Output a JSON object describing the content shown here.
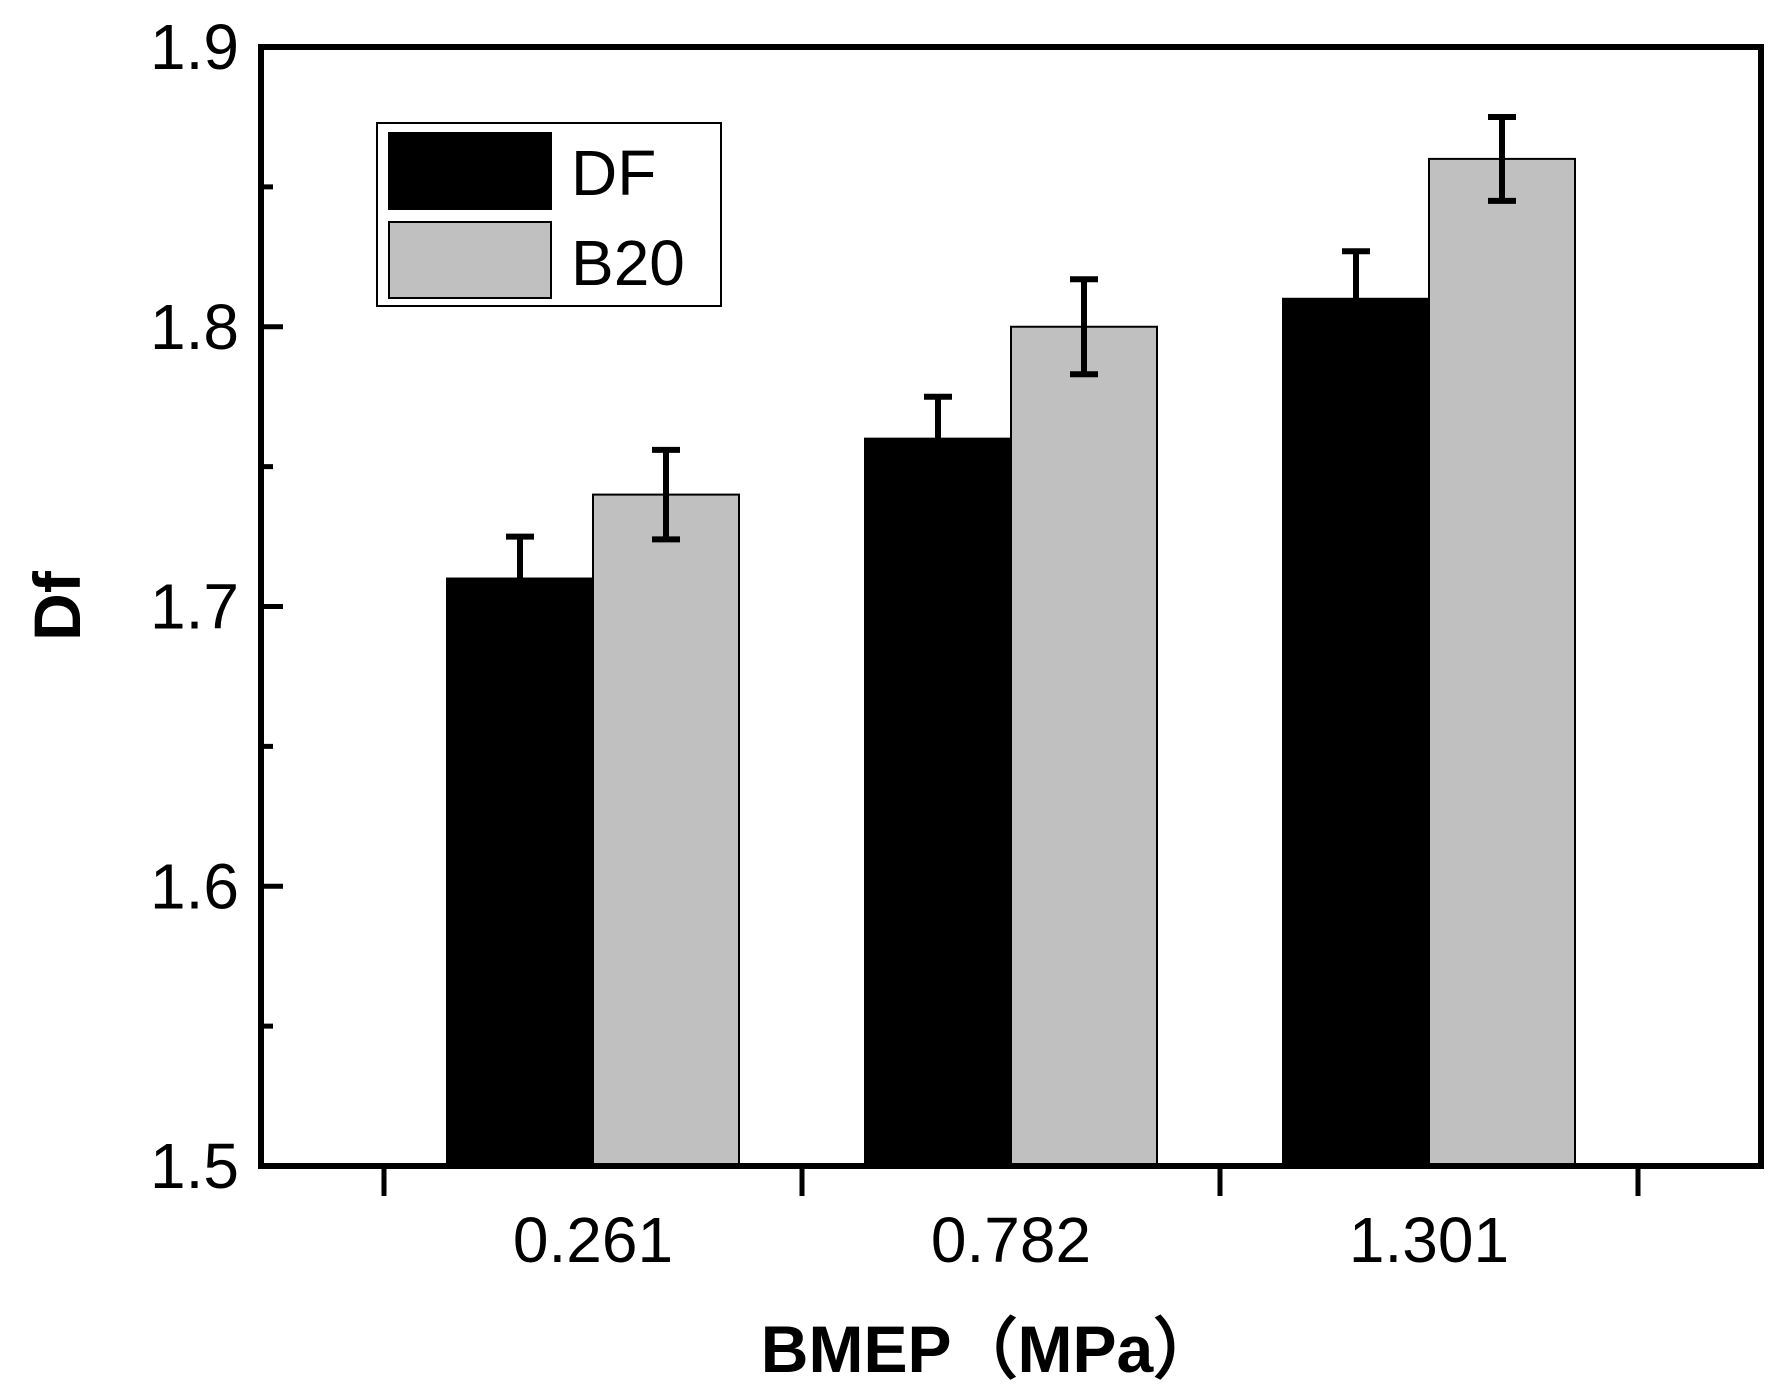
{
  "chart_data": {
    "type": "bar",
    "title": "",
    "xlabel": "BMEP（MPa）",
    "ylabel": "Df",
    "categories": [
      "0.261",
      "0.782",
      "1.301"
    ],
    "ylim": [
      1.5,
      1.9
    ],
    "yticks": [
      "1.5",
      "1.6",
      "1.7",
      "1.8",
      "1.9"
    ],
    "series": [
      {
        "name": "DF",
        "values": [
          1.71,
          1.76,
          1.81
        ],
        "errors": [
          0.015,
          0.015,
          0.017
        ],
        "color": "#000000"
      },
      {
        "name": "B20",
        "values": [
          1.74,
          1.8,
          1.86
        ],
        "errors": [
          0.016,
          0.017,
          0.015
        ],
        "color": "#c0c0c0"
      }
    ],
    "legend_position": "top-left",
    "grid": false
  }
}
